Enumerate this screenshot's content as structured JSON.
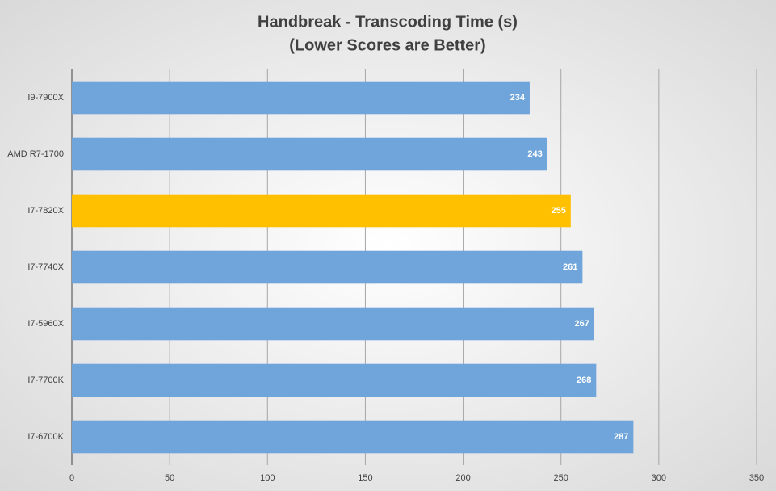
{
  "chart_data": {
    "type": "barh",
    "title": "Handbreak - Transcoding Time (s)",
    "subtitle": "(Lower Scores are Better)",
    "categories": [
      "I9-7900X",
      "AMD R7-1700",
      "I7-7820X",
      "I7-7740X",
      "I7-5960X",
      "I7-7700K",
      "I7-6700K"
    ],
    "values": [
      234,
      243,
      255,
      261,
      267,
      268,
      287
    ],
    "colors": [
      "#6fa5da",
      "#6fa5da",
      "#ffc000",
      "#6fa5da",
      "#6fa5da",
      "#6fa5da",
      "#6fa5da"
    ],
    "xlim": [
      0,
      350
    ],
    "xticks": [
      0,
      50,
      100,
      150,
      200,
      250,
      300,
      350
    ],
    "grid": true
  }
}
